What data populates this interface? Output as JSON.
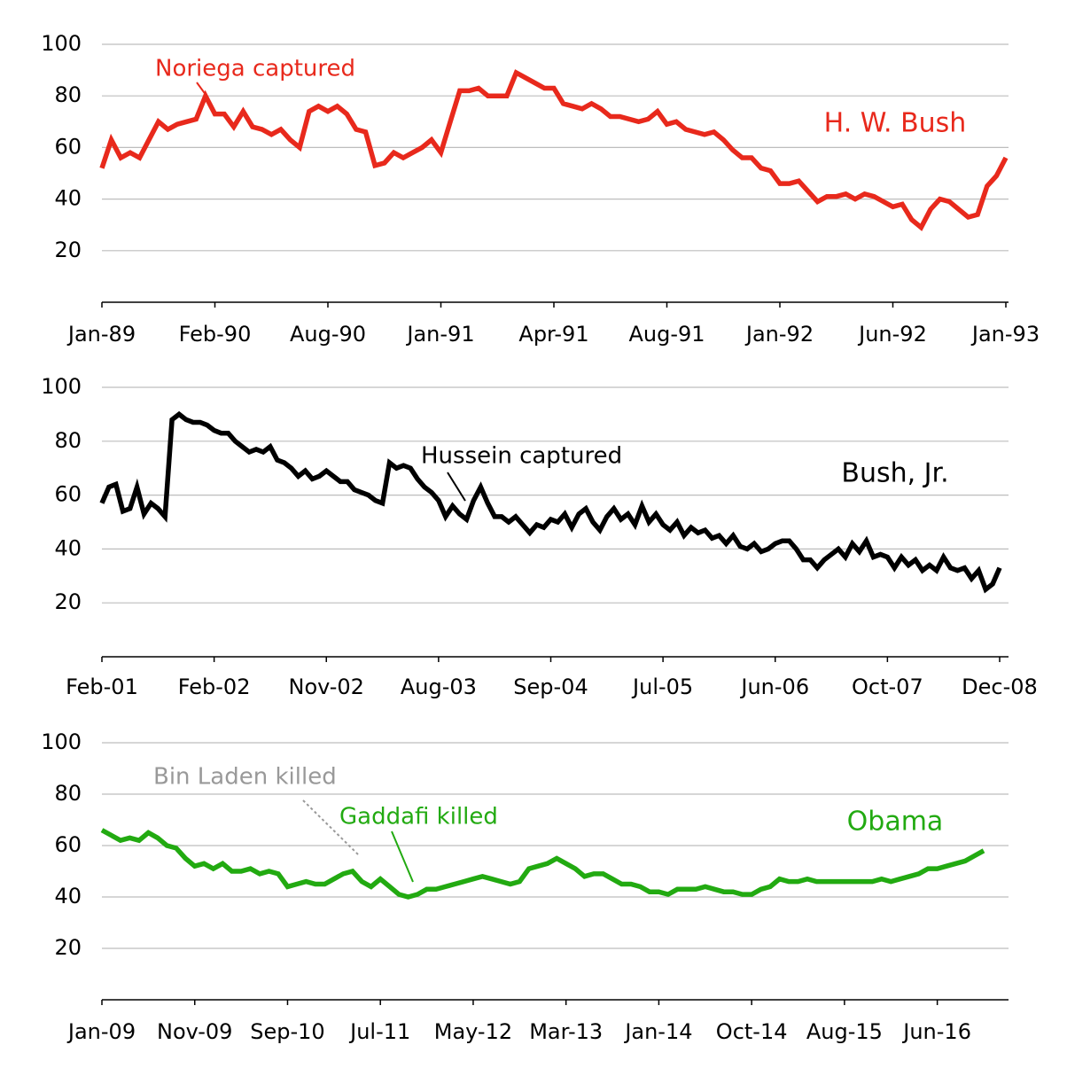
{
  "chart_data": [
    {
      "type": "line",
      "categories": [
        "Jan-89",
        null,
        null,
        null,
        null,
        null,
        null,
        null,
        null,
        null,
        null,
        null,
        "Feb-90",
        null,
        null,
        null,
        null,
        null,
        null,
        null,
        null,
        null,
        null,
        null,
        "Aug-90",
        null,
        null,
        null,
        null,
        null,
        null,
        null,
        null,
        null,
        null,
        null,
        "Jan-91",
        null,
        null,
        null,
        null,
        null,
        null,
        null,
        null,
        null,
        null,
        null,
        "Apr-91",
        null,
        null,
        null,
        null,
        null,
        null,
        null,
        null,
        null,
        null,
        null,
        "Aug-91",
        null,
        null,
        null,
        null,
        null,
        null,
        null,
        null,
        null,
        null,
        null,
        "Jan-92",
        null,
        null,
        null,
        null,
        null,
        null,
        null,
        null,
        null,
        null,
        null,
        "Jun-92",
        null,
        null,
        null,
        null,
        null,
        null,
        null,
        null,
        null,
        null,
        null,
        "Jan-93"
      ],
      "series": [
        {
          "name": "H. W. Bush",
          "color": "#e8291c",
          "values": [
            52,
            63,
            56,
            58,
            56,
            63,
            70,
            67,
            69,
            70,
            71,
            80,
            73,
            73,
            68,
            74,
            68,
            67,
            65,
            67,
            63,
            60,
            74,
            76,
            74,
            76,
            73,
            67,
            66,
            53,
            54,
            58,
            56,
            58,
            60,
            63,
            58,
            70,
            82,
            82,
            83,
            80,
            80,
            80,
            89,
            87,
            85,
            83,
            83,
            77,
            76,
            75,
            77,
            75,
            72,
            72,
            71,
            70,
            71,
            74,
            69,
            70,
            67,
            66,
            65,
            66,
            63,
            59,
            56,
            56,
            52,
            51,
            46,
            46,
            47,
            43,
            39,
            41,
            41,
            42,
            40,
            42,
            41,
            39,
            37,
            38,
            32,
            29,
            36,
            40,
            39,
            36,
            33,
            34,
            45,
            49,
            56
          ]
        }
      ],
      "annotations": [
        {
          "text": "Noriega captured",
          "color": "#e8291c"
        }
      ],
      "ylim": [
        0,
        100
      ],
      "yticks": [
        20,
        40,
        60,
        80,
        100
      ],
      "grid": true
    },
    {
      "type": "line",
      "categories": [
        "Feb-01",
        null,
        null,
        null,
        null,
        null,
        null,
        null,
        null,
        null,
        null,
        null,
        null,
        null,
        null,
        null,
        "Feb-02",
        null,
        null,
        null,
        null,
        null,
        null,
        null,
        null,
        null,
        null,
        null,
        null,
        null,
        null,
        null,
        "Nov-02",
        null,
        null,
        null,
        null,
        null,
        null,
        null,
        null,
        null,
        null,
        null,
        null,
        null,
        null,
        null,
        "Aug-03",
        null,
        null,
        null,
        null,
        null,
        null,
        null,
        null,
        null,
        null,
        null,
        null,
        null,
        null,
        null,
        "Sep-04",
        null,
        null,
        null,
        null,
        null,
        null,
        null,
        null,
        null,
        null,
        null,
        null,
        null,
        null,
        null,
        "Jul-05",
        null,
        null,
        null,
        null,
        null,
        null,
        null,
        null,
        null,
        null,
        null,
        null,
        null,
        null,
        null,
        "Jun-06",
        null,
        null,
        null,
        null,
        null,
        null,
        null,
        null,
        null,
        null,
        null,
        null,
        null,
        null,
        null,
        "Oct-07",
        null,
        null,
        null,
        null,
        null,
        null,
        null,
        null,
        null,
        null,
        null,
        null,
        null,
        null,
        null,
        "Dec-08"
      ],
      "series": [
        {
          "name": "Bush, Jr.",
          "color": "#000000",
          "values": [
            57,
            63,
            64,
            54,
            55,
            63,
            53,
            57,
            55,
            52,
            88,
            90,
            88,
            87,
            87,
            86,
            84,
            83,
            83,
            80,
            78,
            76,
            77,
            76,
            78,
            73,
            72,
            70,
            67,
            69,
            66,
            67,
            69,
            67,
            65,
            65,
            62,
            61,
            60,
            58,
            57,
            72,
            70,
            71,
            70,
            66,
            63,
            61,
            58,
            52,
            56,
            53,
            51,
            58,
            63,
            57,
            52,
            52,
            50,
            52,
            49,
            46,
            49,
            48,
            51,
            50,
            53,
            48,
            53,
            55,
            50,
            47,
            52,
            55,
            51,
            53,
            49,
            56,
            50,
            53,
            49,
            47,
            50,
            45,
            48,
            46,
            47,
            44,
            45,
            42,
            45,
            41,
            40,
            42,
            39,
            40,
            42,
            43,
            43,
            40,
            36,
            36,
            33,
            36,
            38,
            40,
            37,
            42,
            39,
            43,
            37,
            38,
            37,
            33,
            37,
            34,
            36,
            32,
            34,
            32,
            37,
            33,
            32,
            33,
            29,
            32,
            25,
            27,
            33
          ]
        }
      ],
      "annotations": [
        {
          "text": "Hussein captured",
          "color": "#000000"
        }
      ],
      "ylim": [
        0,
        100
      ],
      "yticks": [
        20,
        40,
        60,
        80,
        100
      ],
      "grid": true
    },
    {
      "type": "line",
      "categories": [
        "Jan-09",
        null,
        null,
        null,
        null,
        null,
        null,
        null,
        null,
        null,
        "Nov-09",
        null,
        null,
        null,
        null,
        null,
        null,
        null,
        null,
        null,
        "Sep-10",
        null,
        null,
        null,
        null,
        null,
        null,
        null,
        null,
        null,
        "Jul-11",
        null,
        null,
        null,
        null,
        null,
        null,
        null,
        null,
        null,
        "May-12",
        null,
        null,
        null,
        null,
        null,
        null,
        null,
        null,
        null,
        "Mar-13",
        null,
        null,
        null,
        null,
        null,
        null,
        null,
        null,
        null,
        "Jan-14",
        null,
        null,
        null,
        null,
        null,
        null,
        null,
        null,
        null,
        "Oct-14",
        null,
        null,
        null,
        null,
        null,
        null,
        null,
        null,
        null,
        "Aug-15",
        null,
        null,
        null,
        null,
        null,
        null,
        null,
        null,
        null,
        "Jun-16",
        null,
        null,
        null,
        null,
        null
      ],
      "series": [
        {
          "name": "Obama",
          "color": "#22aa11",
          "values": [
            66,
            64,
            62,
            63,
            62,
            65,
            63,
            60,
            59,
            55,
            52,
            53,
            51,
            53,
            50,
            50,
            51,
            49,
            50,
            49,
            44,
            45,
            46,
            45,
            45,
            47,
            49,
            50,
            46,
            44,
            47,
            44,
            41,
            40,
            41,
            43,
            43,
            44,
            45,
            46,
            47,
            48,
            47,
            46,
            45,
            46,
            51,
            52,
            53,
            55,
            53,
            51,
            48,
            49,
            49,
            47,
            45,
            45,
            44,
            42,
            42,
            41,
            43,
            43,
            43,
            44,
            43,
            42,
            42,
            41,
            41,
            43,
            44,
            47,
            46,
            46,
            47,
            46,
            46,
            46,
            46,
            46,
            46,
            46,
            47,
            46,
            47,
            48,
            49,
            51,
            51,
            52,
            53,
            54,
            56,
            58
          ]
        }
      ],
      "annotations": [
        {
          "text": "Bin Laden killed",
          "color": "#999999"
        },
        {
          "text": "Gaddafi killed",
          "color": "#22aa11"
        }
      ],
      "ylim": [
        0,
        100
      ],
      "yticks": [
        20,
        40,
        60,
        80,
        100
      ],
      "grid": true
    }
  ]
}
